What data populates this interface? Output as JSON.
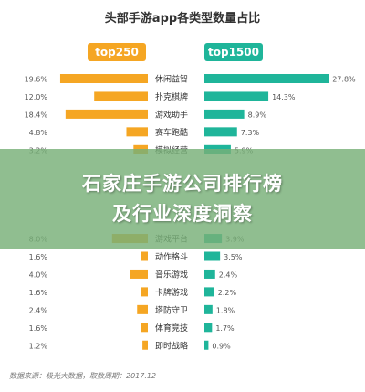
{
  "header": {
    "title": "头部手游app各类型数量占比"
  },
  "panels": {
    "left_label": "top250",
    "right_label": "top1500"
  },
  "colors": {
    "left": "#f5a623",
    "right": "#1fb59a",
    "label": "#555555",
    "overlay": "#78b078"
  },
  "overlay": {
    "line1": "石家庄手游公司排行榜",
    "line2": "及行业深度洞察"
  },
  "footer": {
    "source": "数据来源：极光大数据，取数周期：2017.12"
  },
  "chart_data": {
    "type": "bar",
    "title": "头部手游app各类型数量占比",
    "categories": [
      "休闲益智",
      "扑克棋牌",
      "游戏助手",
      "赛车跑酷",
      "模拟经营",
      "",
      "",
      "",
      "",
      "游戏平台",
      "动作格斗",
      "音乐游戏",
      "卡牌游戏",
      "塔防守卫",
      "体育竞技",
      "即时战略"
    ],
    "series": [
      {
        "name": "top250",
        "values": [
          19.6,
          12.0,
          18.4,
          4.8,
          3.2,
          null,
          null,
          null,
          null,
          8.0,
          1.6,
          4.0,
          1.6,
          2.4,
          1.6,
          1.2
        ],
        "labels": [
          "19.6%",
          "12.0%",
          "18.4%",
          "4.8%",
          "3.2%",
          "",
          "",
          "",
          "",
          "8.0%",
          "1.6%",
          "4.0%",
          "1.6%",
          "2.4%",
          "1.6%",
          "1.2%"
        ]
      },
      {
        "name": "top1500",
        "values": [
          27.8,
          14.3,
          8.9,
          7.3,
          5.9,
          null,
          null,
          null,
          null,
          3.9,
          3.5,
          2.4,
          2.2,
          1.8,
          1.7,
          0.9
        ],
        "labels": [
          "27.8%",
          "14.3%",
          "8.9%",
          "7.3%",
          "5.9%",
          "",
          "",
          "",
          "",
          "3.9%",
          "3.5%",
          "2.4%",
          "2.2%",
          "1.8%",
          "1.7%",
          "0.9%"
        ]
      }
    ],
    "legend": "none",
    "grid": false
  }
}
